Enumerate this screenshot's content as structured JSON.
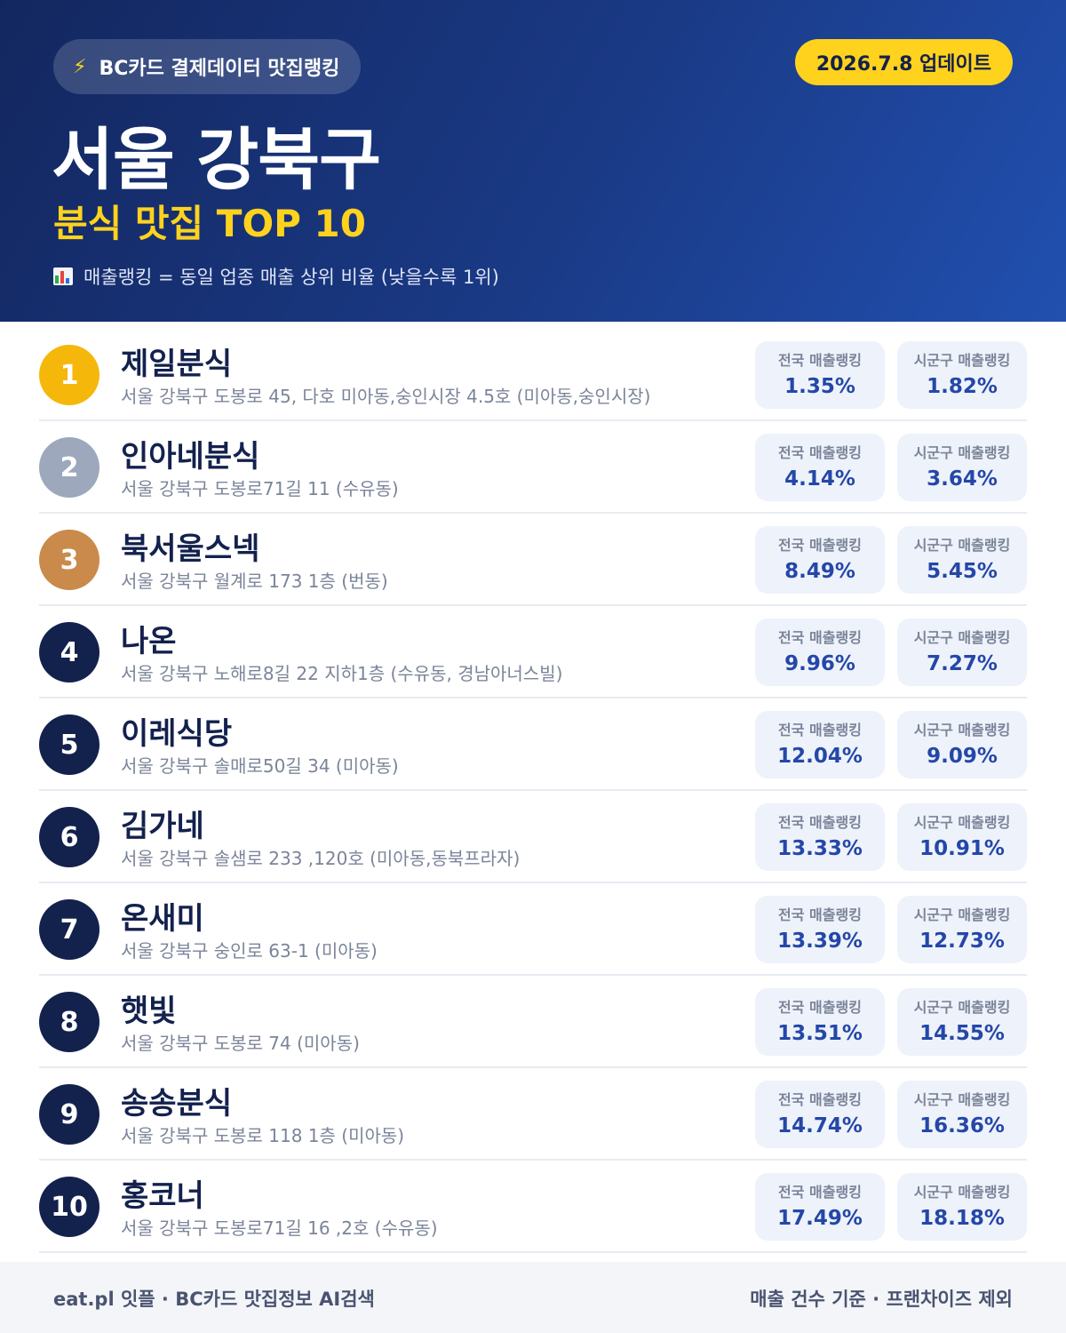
{
  "header": {
    "badge_icon": "lightning-icon",
    "badge_label": "BC카드 결제데이터 맛집랭킹",
    "update_label": "2026.7.8 업데이트",
    "title": "서울 강북구",
    "subtitle": "분식 맛집 TOP 10",
    "note_icon": "bar-chart-icon",
    "note": "매출랭킹 = 동일 업종 매출 상위 비율 (낮을수록 1위)"
  },
  "stat_labels": {
    "national": "전국 매출랭킹",
    "local": "시군구 매출랭킹"
  },
  "colors": {
    "navy": "#13214d",
    "gold": "#f5b70a",
    "silver": "#9da8bd",
    "bronze": "#c98a4b",
    "yellow": "#ffd21e",
    "value_blue": "#2447a8"
  },
  "rows": [
    {
      "rank": "1",
      "name": "제일분식",
      "address": "서울 강북구 도봉로 45, 다호 미아동,숭인시장 4.5호 (미아동,숭인시장)",
      "national": "1.35%",
      "local": "1.82%"
    },
    {
      "rank": "2",
      "name": "인아네분식",
      "address": "서울 강북구 도봉로71길 11 (수유동)",
      "national": "4.14%",
      "local": "3.64%"
    },
    {
      "rank": "3",
      "name": "북서울스넥",
      "address": "서울 강북구 월계로 173 1층 (번동)",
      "national": "8.49%",
      "local": "5.45%"
    },
    {
      "rank": "4",
      "name": "나온",
      "address": "서울 강북구 노해로8길 22 지하1층 (수유동, 경남아너스빌)",
      "national": "9.96%",
      "local": "7.27%"
    },
    {
      "rank": "5",
      "name": "이레식당",
      "address": "서울 강북구 솔매로50길 34 (미아동)",
      "national": "12.04%",
      "local": "9.09%"
    },
    {
      "rank": "6",
      "name": "김가네",
      "address": "서울 강북구 솔샘로 233 ,120호 (미아동,동북프라자)",
      "national": "13.33%",
      "local": "10.91%"
    },
    {
      "rank": "7",
      "name": "온새미",
      "address": "서울 강북구 숭인로 63-1 (미아동)",
      "national": "13.39%",
      "local": "12.73%"
    },
    {
      "rank": "8",
      "name": "햇빛",
      "address": "서울 강북구 도봉로 74 (미아동)",
      "national": "13.51%",
      "local": "14.55%"
    },
    {
      "rank": "9",
      "name": "송송분식",
      "address": "서울 강북구 도봉로 118 1층 (미아동)",
      "national": "14.74%",
      "local": "16.36%"
    },
    {
      "rank": "10",
      "name": "홍코너",
      "address": "서울 강북구 도봉로71길 16 ,2호 (수유동)",
      "national": "17.49%",
      "local": "18.18%"
    }
  ],
  "footer": {
    "left": "eat.pl 잇플 · BC카드 맛집정보 AI검색",
    "right": "매출 건수 기준 · 프랜차이즈 제외"
  }
}
